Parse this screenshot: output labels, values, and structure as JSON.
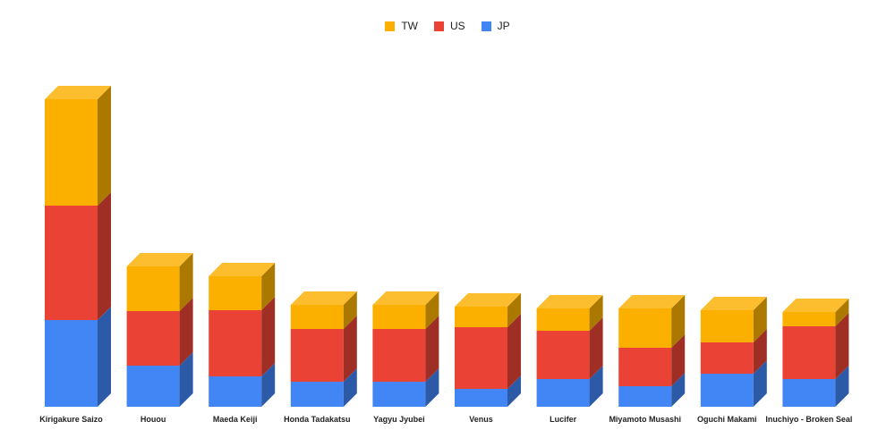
{
  "chart_data": {
    "type": "bar",
    "stacked": true,
    "style": "3d",
    "categories": [
      "Kirigakure Saizo",
      "Houou",
      "Maeda Keiji",
      "Honda Tadakatsu",
      "Yagyu Jyubei",
      "Venus",
      "Lucifer",
      "Miyamoto Musashi",
      "Oguchi Makami",
      "Inuchiyo - Broken Seal"
    ],
    "series": [
      {
        "name": "JP",
        "color": "#4285f4",
        "values": [
          97,
          46,
          34,
          28,
          28,
          20,
          31,
          23,
          37,
          31
        ]
      },
      {
        "name": "US",
        "color": "#ea4335",
        "values": [
          128,
          61,
          74,
          59,
          59,
          69,
          54,
          43,
          35,
          59
        ]
      },
      {
        "name": "TW",
        "color": "#fbb000",
        "values": [
          119,
          50,
          38,
          27,
          27,
          23,
          25,
          44,
          36,
          16
        ]
      }
    ],
    "legend": {
      "position": "top",
      "order": [
        "TW",
        "US",
        "JP"
      ]
    },
    "ylim": [
      0,
      344
    ],
    "grid": false,
    "title": "",
    "xlabel": "",
    "ylabel": ""
  }
}
